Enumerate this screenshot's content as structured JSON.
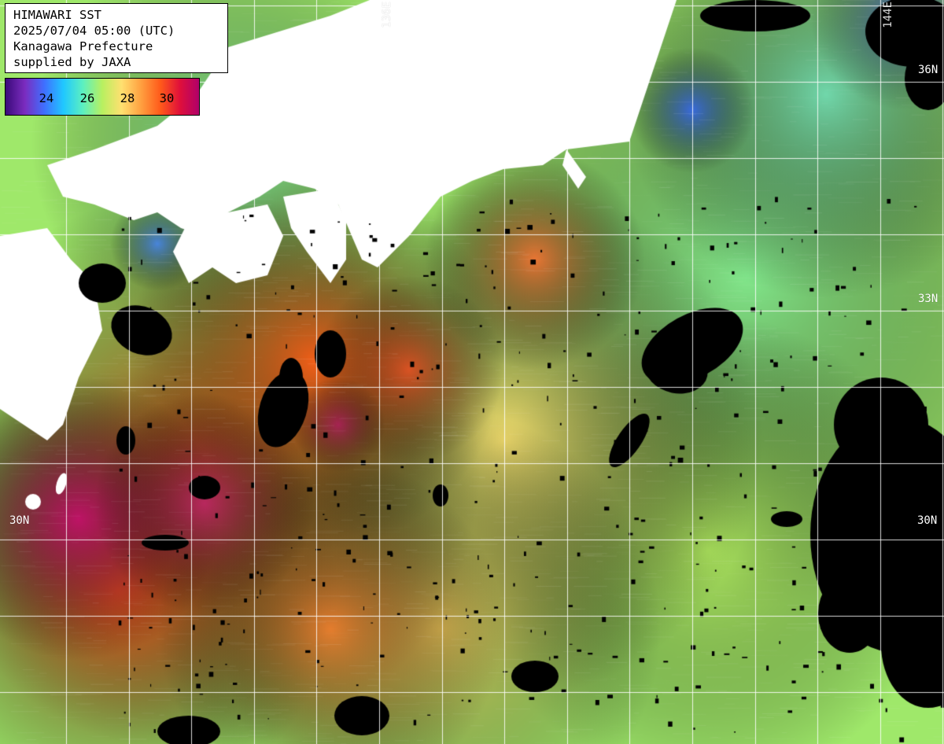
{
  "header": {
    "title": "HIMAWARI SST",
    "datetime": "2025/07/04 05:00 (UTC)",
    "region": "Kanagawa Prefecture",
    "credit": "supplied by JAXA"
  },
  "color_scale": {
    "ticks": [
      {
        "value": 24,
        "label": "24"
      },
      {
        "value": 26,
        "label": "26"
      },
      {
        "value": 28,
        "label": "28"
      },
      {
        "value": 30,
        "label": "30"
      }
    ],
    "colors": [
      "#3a0a7a",
      "#7b2cbf",
      "#3f6fff",
      "#20c8ff",
      "#5cf0c0",
      "#b8f060",
      "#ffe070",
      "#ffa040",
      "#ff5a1a",
      "#e0103a",
      "#b0006a"
    ]
  },
  "grid_labels": {
    "lat": [
      {
        "label": "36N",
        "value": 36
      },
      {
        "label": "33N",
        "value": 33
      },
      {
        "label": "30N",
        "value": 30
      }
    ],
    "lon": [
      {
        "label": "136E",
        "value": 136
      },
      {
        "label": "144E",
        "value": 144
      }
    ]
  },
  "colors": {
    "land": "#ffffff",
    "cloud_mask": "#000000",
    "gridline": "#ffffff"
  }
}
